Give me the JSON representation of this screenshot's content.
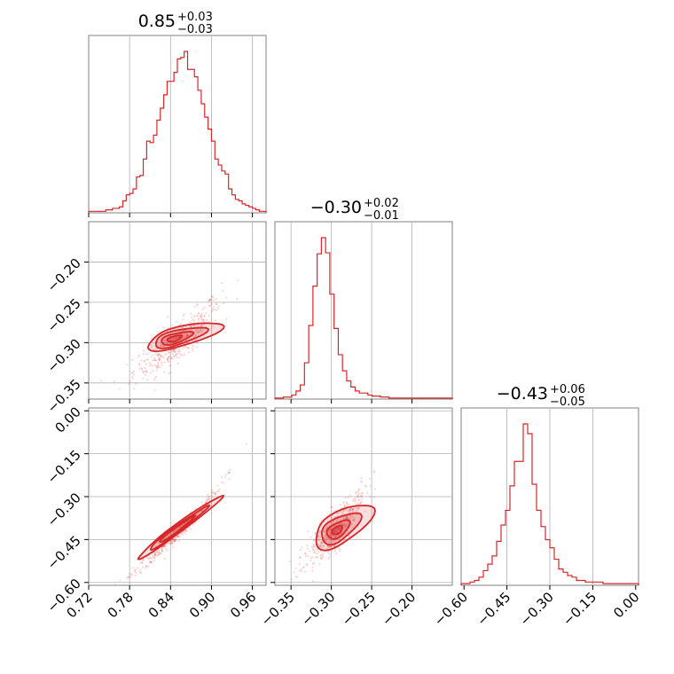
{
  "colors": {
    "accent": "#d62728",
    "grid": "#b0b0b0",
    "frame": "#808080"
  },
  "chart_data": [
    {
      "type": "histogram",
      "panel": "p1-marginal",
      "title_value": "0.85",
      "title_plus": "+0.03",
      "title_minus": "−0.03",
      "x_range": [
        0.72,
        0.98
      ],
      "x_grid": [
        0.78,
        0.84,
        0.9,
        0.96
      ],
      "bins_x": [
        0.72,
        0.725,
        0.73,
        0.735,
        0.74,
        0.745,
        0.75,
        0.755,
        0.76,
        0.765,
        0.77,
        0.775,
        0.78,
        0.785,
        0.79,
        0.795,
        0.8,
        0.805,
        0.81,
        0.815,
        0.82,
        0.825,
        0.83,
        0.835,
        0.84,
        0.845,
        0.85,
        0.855,
        0.86,
        0.865,
        0.87,
        0.875,
        0.88,
        0.885,
        0.89,
        0.895,
        0.9,
        0.905,
        0.91,
        0.915,
        0.92,
        0.925,
        0.93,
        0.935,
        0.94,
        0.945,
        0.95,
        0.955,
        0.96,
        0.965,
        0.97,
        0.975,
        0.98
      ],
      "counts": [
        1,
        1,
        1,
        1,
        1,
        2,
        2,
        3,
        3,
        4,
        8,
        12,
        13,
        16,
        24,
        25,
        36,
        48,
        47,
        52,
        62,
        70,
        79,
        88,
        88,
        94,
        103,
        104,
        108,
        96,
        96,
        91,
        82,
        73,
        64,
        56,
        48,
        36,
        32,
        28,
        26,
        16,
        12,
        9,
        8,
        6,
        5,
        4,
        3,
        2,
        1,
        1
      ]
    },
    {
      "type": "scatter-contour",
      "panel": "p1-vs-p2",
      "x_range": [
        0.72,
        0.98
      ],
      "y_range": [
        -0.37,
        -0.15
      ],
      "x_grid": [
        0.78,
        0.84,
        0.9,
        0.96
      ],
      "y_ticks": [
        -0.2,
        -0.25,
        -0.3,
        -0.35
      ],
      "y_tick_labels": [
        "−0.20",
        "−0.25",
        "−0.30",
        "−0.35"
      ],
      "relation": {
        "slope": 0.58,
        "intercept": -0.795,
        "curvature": 2.6,
        "x0": 0.85,
        "sx": 0.03,
        "sy": 0.012
      }
    },
    {
      "type": "histogram",
      "panel": "p2-marginal",
      "title_value": "−0.30",
      "title_plus": "+0.02",
      "title_minus": "−0.01",
      "x_range": [
        -0.37,
        -0.15
      ],
      "x_grid": [
        -0.35,
        -0.3,
        -0.25,
        -0.2
      ],
      "counts": [
        1,
        1,
        2,
        2,
        4,
        8,
        14,
        36,
        73,
        112,
        144,
        160,
        145,
        104,
        70,
        44,
        28,
        18,
        12,
        8,
        6,
        6,
        4,
        3,
        3,
        2,
        2,
        1,
        1,
        1,
        1,
        1,
        1,
        1,
        1,
        1,
        1,
        1,
        1,
        1,
        1,
        1
      ]
    },
    {
      "type": "scatter-contour",
      "panel": "p1-vs-p3",
      "x_range": [
        0.72,
        0.98
      ],
      "y_range": [
        -0.61,
        0.01
      ],
      "x_grid": [
        0.78,
        0.84,
        0.9,
        0.96
      ],
      "x_ticks": [
        0.72,
        0.78,
        0.84,
        0.9,
        0.96
      ],
      "x_tick_labels": [
        "0.72",
        "0.78",
        "0.84",
        "0.90",
        "0.96"
      ],
      "y_ticks": [
        0.0,
        -0.15,
        -0.3,
        -0.45,
        -0.6
      ],
      "y_tick_labels": [
        "0.00",
        "−0.15",
        "−0.30",
        "−0.45",
        "−0.60"
      ]
    },
    {
      "type": "scatter-contour",
      "panel": "p2-vs-p3",
      "x_range": [
        -0.37,
        -0.15
      ],
      "y_range": [
        -0.61,
        0.01
      ],
      "x_ticks": [
        -0.35,
        -0.3,
        -0.25,
        -0.2
      ],
      "x_tick_labels": [
        "−0.35",
        "−0.30",
        "−0.25",
        "−0.20"
      ]
    },
    {
      "type": "histogram",
      "panel": "p3-marginal",
      "title_value": "−0.43",
      "title_plus": "+0.06",
      "title_minus": "−0.05",
      "x_range": [
        -0.61,
        0.01
      ],
      "x_ticks": [
        -0.6,
        -0.45,
        -0.3,
        -0.15,
        0.0
      ],
      "x_tick_labels": [
        "−0.60",
        "−0.45",
        "−0.30",
        "−0.15",
        "0.00"
      ],
      "counts": [
        1,
        1,
        2,
        3,
        5,
        9,
        13,
        18,
        27,
        37,
        46,
        61,
        76,
        76,
        99,
        93,
        62,
        46,
        36,
        28,
        23,
        16,
        10,
        8,
        6,
        5,
        3,
        3,
        2,
        2,
        2,
        2,
        1,
        1,
        1,
        1,
        1,
        1,
        1,
        1
      ]
    }
  ]
}
